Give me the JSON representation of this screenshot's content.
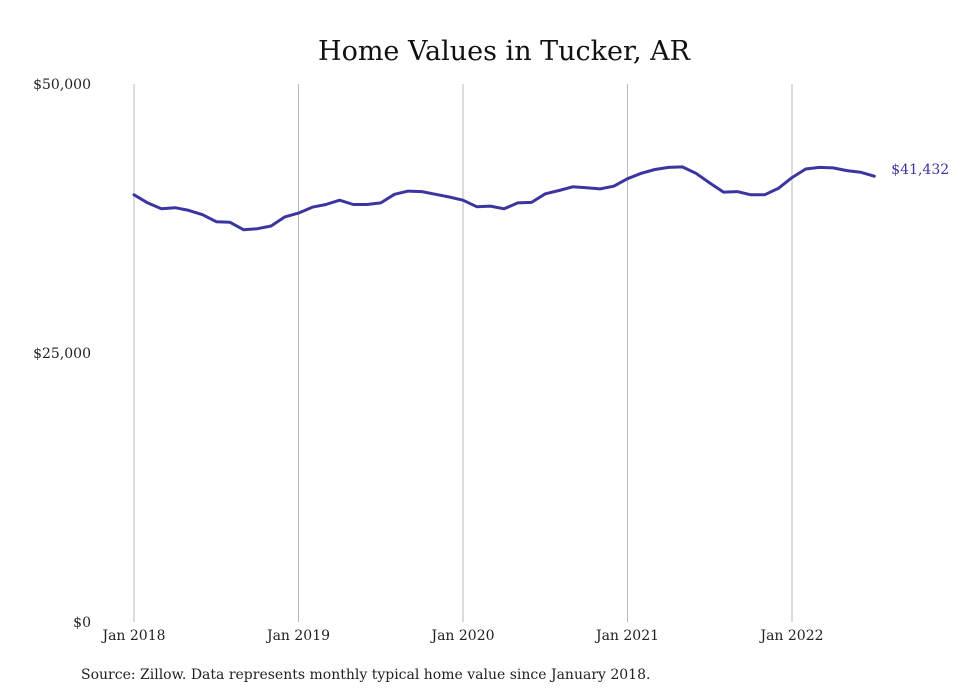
{
  "chart_data": {
    "type": "line",
    "title": "Home Values in Tucker, AR",
    "xlabel": "",
    "ylabel": "",
    "ylim": [
      0,
      50000
    ],
    "y_ticks": [
      {
        "value": 0,
        "label": "$0"
      },
      {
        "value": 25000,
        "label": "$25,000"
      },
      {
        "value": 50000,
        "label": "$50,000"
      }
    ],
    "x_ticks": [
      {
        "date": "2018-01",
        "label": "Jan 2018"
      },
      {
        "date": "2019-01",
        "label": "Jan 2019"
      },
      {
        "date": "2020-01",
        "label": "Jan 2020"
      },
      {
        "date": "2021-01",
        "label": "Jan 2021"
      },
      {
        "date": "2022-01",
        "label": "Jan 2022"
      }
    ],
    "grid": "vertical",
    "line_color": "#3b35a0",
    "end_label": "$41,432",
    "series": [
      {
        "x": [
          "2018-01",
          "2018-02",
          "2018-03",
          "2018-04",
          "2018-05",
          "2018-06",
          "2018-07",
          "2018-08",
          "2018-09",
          "2018-10",
          "2018-11",
          "2018-12",
          "2019-01",
          "2019-02",
          "2019-03",
          "2019-04",
          "2019-05",
          "2019-06",
          "2019-07",
          "2019-08",
          "2019-09",
          "2019-10",
          "2019-11",
          "2019-12",
          "2020-01",
          "2020-02",
          "2020-03",
          "2020-04",
          "2020-05",
          "2020-06",
          "2020-07",
          "2020-08",
          "2020-09",
          "2020-10",
          "2020-11",
          "2020-12",
          "2021-01",
          "2021-02",
          "2021-03",
          "2021-04",
          "2021-05",
          "2021-06",
          "2021-07",
          "2021-08",
          "2021-09",
          "2021-10",
          "2021-11",
          "2021-12",
          "2022-01",
          "2022-02",
          "2022-03",
          "2022-04",
          "2022-05",
          "2022-06",
          "2022-07"
        ],
        "values": [
          39700,
          38950,
          38400,
          38500,
          38250,
          37850,
          37200,
          37150,
          36450,
          36550,
          36800,
          37650,
          38000,
          38550,
          38800,
          39200,
          38800,
          38800,
          38950,
          39750,
          40050,
          40000,
          39750,
          39500,
          39200,
          38600,
          38650,
          38400,
          38950,
          39000,
          39800,
          40100,
          40450,
          40350,
          40250,
          40500,
          41200,
          41700,
          42050,
          42250,
          42300,
          41700,
          40800,
          39950,
          40000,
          39700,
          39700,
          40300,
          41300,
          42100,
          42250,
          42200,
          41950,
          41800,
          41432
        ]
      }
    ]
  },
  "footer": {
    "source": "Source: Zillow. Data represents monthly typical home value since January 2018."
  }
}
